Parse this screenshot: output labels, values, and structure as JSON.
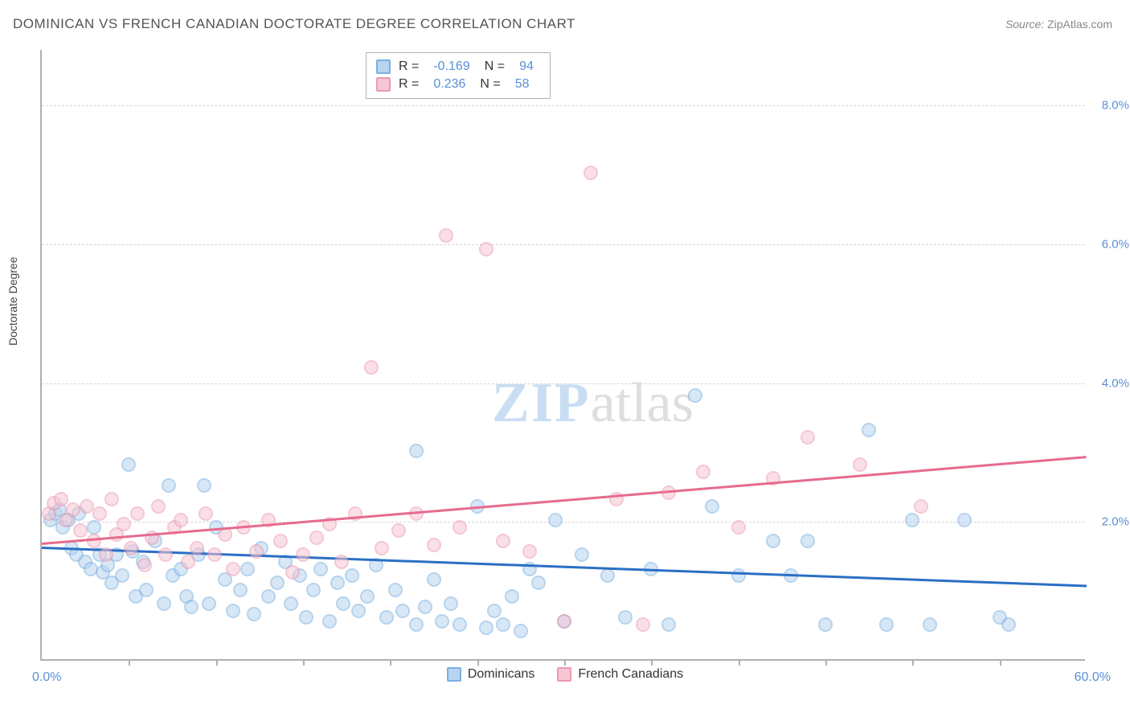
{
  "title": "DOMINICAN VS FRENCH CANADIAN DOCTORATE DEGREE CORRELATION CHART",
  "source_label": "Source:",
  "source_name": "ZipAtlas.com",
  "yaxis_title": "Doctorate Degree",
  "watermark": {
    "left": "ZIP",
    "right": "atlas"
  },
  "chart": {
    "type": "scatter",
    "xlim": [
      0,
      60
    ],
    "ylim": [
      0,
      8.8
    ],
    "yticks": [
      2.0,
      4.0,
      6.0,
      8.0
    ],
    "ytick_labels": [
      "2.0%",
      "4.0%",
      "6.0%",
      "8.0%"
    ],
    "xtick_positions": [
      5,
      10,
      15,
      20,
      25,
      30,
      35,
      40,
      45,
      50,
      55
    ],
    "xlabel_min": "0.0%",
    "xlabel_max": "60.0%",
    "background_color": "#ffffff",
    "grid_color": "#d8d8d8",
    "axis_color": "#b0b0b0",
    "marker_radius": 9,
    "marker_opacity": 0.55,
    "line_width": 3
  },
  "series": [
    {
      "name": "Dominicans",
      "fill": "#b7d4f0",
      "stroke": "#7bb0e0",
      "line_color": "#2a6fc5",
      "R": "-0.169",
      "N": "94",
      "trend": {
        "x1": 0,
        "y1": 1.65,
        "x2": 60,
        "y2": 1.1
      },
      "points": [
        [
          0.5,
          2.0
        ],
        [
          0.8,
          2.1
        ],
        [
          1.0,
          2.15
        ],
        [
          1.2,
          1.9
        ],
        [
          1.5,
          2.0
        ],
        [
          1.7,
          1.6
        ],
        [
          2.0,
          1.5
        ],
        [
          2.1,
          2.1
        ],
        [
          2.5,
          1.4
        ],
        [
          2.8,
          1.3
        ],
        [
          3.0,
          1.9
        ],
        [
          3.3,
          1.5
        ],
        [
          3.5,
          1.25
        ],
        [
          3.8,
          1.35
        ],
        [
          4.0,
          1.1
        ],
        [
          4.3,
          1.5
        ],
        [
          4.6,
          1.2
        ],
        [
          5.0,
          2.8
        ],
        [
          5.2,
          1.55
        ],
        [
          5.4,
          0.9
        ],
        [
          5.8,
          1.4
        ],
        [
          6.0,
          1.0
        ],
        [
          6.5,
          1.7
        ],
        [
          7.0,
          0.8
        ],
        [
          7.3,
          2.5
        ],
        [
          7.5,
          1.2
        ],
        [
          8.0,
          1.3
        ],
        [
          8.3,
          0.9
        ],
        [
          8.6,
          0.75
        ],
        [
          9.0,
          1.5
        ],
        [
          9.3,
          2.5
        ],
        [
          9.6,
          0.8
        ],
        [
          10.0,
          1.9
        ],
        [
          10.5,
          1.15
        ],
        [
          11.0,
          0.7
        ],
        [
          11.4,
          1.0
        ],
        [
          11.8,
          1.3
        ],
        [
          12.2,
          0.65
        ],
        [
          12.6,
          1.6
        ],
        [
          13.0,
          0.9
        ],
        [
          13.5,
          1.1
        ],
        [
          14.0,
          1.4
        ],
        [
          14.3,
          0.8
        ],
        [
          14.8,
          1.2
        ],
        [
          15.2,
          0.6
        ],
        [
          15.6,
          1.0
        ],
        [
          16.0,
          1.3
        ],
        [
          16.5,
          0.55
        ],
        [
          17.0,
          1.1
        ],
        [
          17.3,
          0.8
        ],
        [
          17.8,
          1.2
        ],
        [
          18.2,
          0.7
        ],
        [
          18.7,
          0.9
        ],
        [
          19.2,
          1.35
        ],
        [
          19.8,
          0.6
        ],
        [
          20.3,
          1.0
        ],
        [
          20.7,
          0.7
        ],
        [
          21.5,
          3.0
        ],
        [
          21.5,
          0.5
        ],
        [
          22.0,
          0.75
        ],
        [
          22.5,
          1.15
        ],
        [
          23.0,
          0.55
        ],
        [
          23.5,
          0.8
        ],
        [
          24.0,
          0.5
        ],
        [
          25.0,
          2.2
        ],
        [
          25.5,
          0.45
        ],
        [
          26.0,
          0.7
        ],
        [
          26.5,
          0.5
        ],
        [
          27.0,
          0.9
        ],
        [
          27.5,
          0.4
        ],
        [
          28.0,
          1.3
        ],
        [
          28.5,
          1.1
        ],
        [
          29.5,
          2.0
        ],
        [
          30.0,
          0.55
        ],
        [
          31.0,
          1.5
        ],
        [
          32.5,
          1.2
        ],
        [
          33.5,
          0.6
        ],
        [
          35.0,
          1.3
        ],
        [
          36.0,
          0.5
        ],
        [
          37.5,
          3.8
        ],
        [
          38.5,
          2.2
        ],
        [
          40.0,
          1.2
        ],
        [
          42.0,
          1.7
        ],
        [
          43.0,
          1.2
        ],
        [
          44.0,
          1.7
        ],
        [
          45.0,
          0.5
        ],
        [
          47.5,
          3.3
        ],
        [
          48.5,
          0.5
        ],
        [
          50.0,
          2.0
        ],
        [
          51.0,
          0.5
        ],
        [
          53.0,
          2.0
        ],
        [
          55.0,
          0.6
        ],
        [
          55.5,
          0.5
        ]
      ]
    },
    {
      "name": "French Canadians",
      "fill": "#f6c6d3",
      "stroke": "#ea9ab2",
      "line_color": "#e76b8e",
      "R": "0.236",
      "N": "58",
      "trend": {
        "x1": 0,
        "y1": 1.7,
        "x2": 60,
        "y2": 2.95
      },
      "points": [
        [
          0.4,
          2.1
        ],
        [
          0.7,
          2.25
        ],
        [
          1.1,
          2.3
        ],
        [
          1.4,
          2.0
        ],
        [
          1.8,
          2.15
        ],
        [
          2.2,
          1.85
        ],
        [
          2.6,
          2.2
        ],
        [
          3.0,
          1.7
        ],
        [
          3.3,
          2.1
        ],
        [
          3.7,
          1.5
        ],
        [
          4.0,
          2.3
        ],
        [
          4.3,
          1.8
        ],
        [
          4.7,
          1.95
        ],
        [
          5.1,
          1.6
        ],
        [
          5.5,
          2.1
        ],
        [
          5.9,
          1.35
        ],
        [
          6.3,
          1.75
        ],
        [
          6.7,
          2.2
        ],
        [
          7.1,
          1.5
        ],
        [
          7.6,
          1.9
        ],
        [
          8.0,
          2.0
        ],
        [
          8.4,
          1.4
        ],
        [
          8.9,
          1.6
        ],
        [
          9.4,
          2.1
        ],
        [
          9.9,
          1.5
        ],
        [
          10.5,
          1.8
        ],
        [
          11.0,
          1.3
        ],
        [
          11.6,
          1.9
        ],
        [
          12.3,
          1.55
        ],
        [
          13.0,
          2.0
        ],
        [
          13.7,
          1.7
        ],
        [
          14.4,
          1.25
        ],
        [
          15.0,
          1.5
        ],
        [
          15.8,
          1.75
        ],
        [
          16.5,
          1.95
        ],
        [
          17.2,
          1.4
        ],
        [
          18.0,
          2.1
        ],
        [
          18.9,
          4.2
        ],
        [
          19.5,
          1.6
        ],
        [
          20.5,
          1.85
        ],
        [
          21.5,
          2.1
        ],
        [
          22.5,
          1.65
        ],
        [
          23.2,
          6.1
        ],
        [
          24.0,
          1.9
        ],
        [
          25.5,
          5.9
        ],
        [
          26.5,
          1.7
        ],
        [
          28.0,
          1.55
        ],
        [
          30.0,
          0.55
        ],
        [
          31.5,
          7.0
        ],
        [
          33.0,
          2.3
        ],
        [
          34.5,
          0.5
        ],
        [
          36.0,
          2.4
        ],
        [
          38.0,
          2.7
        ],
        [
          40.0,
          1.9
        ],
        [
          42.0,
          2.6
        ],
        [
          44.0,
          3.2
        ],
        [
          47.0,
          2.8
        ],
        [
          50.5,
          2.2
        ]
      ]
    }
  ],
  "legend_top_labels": {
    "R": "R",
    "eq": "=",
    "N": "N"
  },
  "legend_bottom": [
    {
      "label": "Dominicans",
      "series_idx": 0
    },
    {
      "label": "French Canadians",
      "series_idx": 1
    }
  ]
}
